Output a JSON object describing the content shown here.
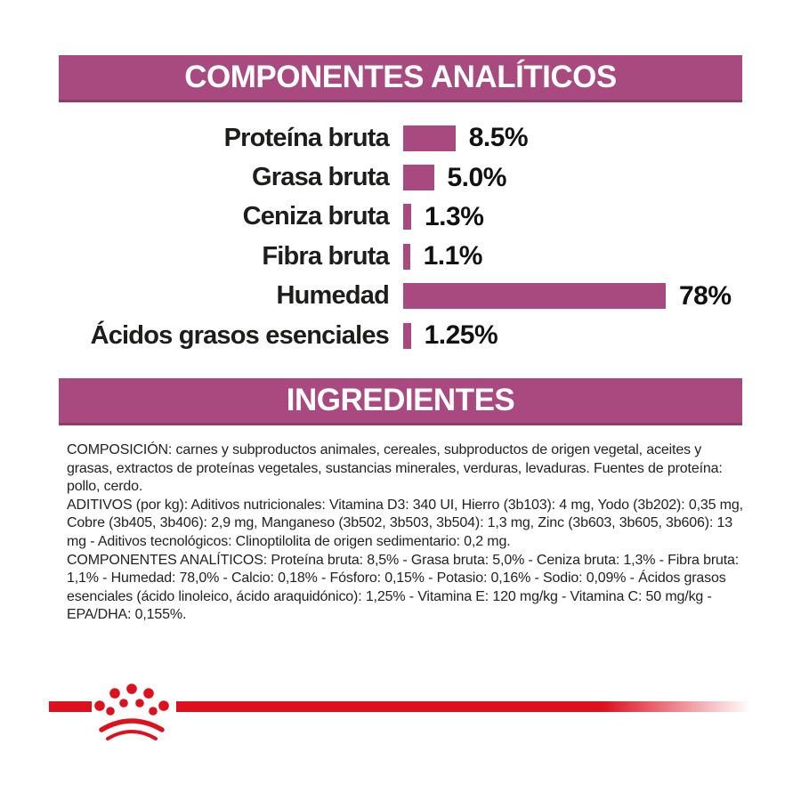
{
  "sections": {
    "analytical": {
      "title": "COMPONENTES ANALÍTICOS"
    },
    "ingredients": {
      "title": "INGREDIENTES"
    }
  },
  "chart_data": {
    "type": "bar",
    "orientation": "horizontal",
    "title": "COMPONENTES ANALÍTICOS",
    "categories": [
      "Proteína bruta",
      "Grasa bruta",
      "Ceniza bruta",
      "Fibra bruta",
      "Humedad",
      "Ácidos grasos esenciales"
    ],
    "values": [
      8.5,
      5.0,
      1.3,
      1.1,
      78,
      1.25
    ],
    "value_labels": [
      "8.5%",
      "5.0%",
      "1.3%",
      "1.1%",
      "78%",
      "1.25%"
    ],
    "unit": "%",
    "bar_color": "#A84A7F",
    "grid": false,
    "legend": false
  },
  "ingredients": {
    "paragraphs": [
      "COMPOSICIÓN: carnes y subproductos animales, cereales, subproductos de origen vegetal, aceites y grasas, extractos de proteínas vegetales, sustancias minerales, verduras, levaduras. Fuentes de proteína: pollo, cerdo.",
      "ADITIVOS (por kg): Aditivos nutricionales: Vitamina D3: 340 UI, Hierro (3b103): 4 mg, Yodo (3b202): 0,35 mg, Cobre (3b405, 3b406): 2,9 mg, Manganeso (3b502, 3b503, 3b504): 1,3 mg, Zinc (3b603, 3b605, 3b606): 13 mg - Aditivos tecnológicos: Clinoptilolita de origen sedimentario: 0,2 mg.",
      "COMPONENTES ANALÍTICOS: Proteína bruta: 8,5% - Grasa bruta: 5,0% - Ceniza bruta: 1,3% - Fibra bruta: 1,1% - Humedad: 78,0% - Calcio: 0,18% - Fósforo: 0,15% - Potasio: 0,16% - Sodio: 0,09% - Ácidos grasos esenciales (ácido linoleico, ácido araquidónico): 1,25% - Vitamina E: 120 mg/kg - Vitamina C: 50 mg/kg - EPA/DHA: 0,155%."
    ]
  },
  "logo": {
    "icon": "royal-canin-crown-icon"
  },
  "colors": {
    "magenta": "#A84A7F",
    "magenta_dark_edge": "#8e3c6a",
    "red": "#DD101E",
    "text_dark": "#1d1d1b",
    "banner_text": "#ffffff"
  }
}
